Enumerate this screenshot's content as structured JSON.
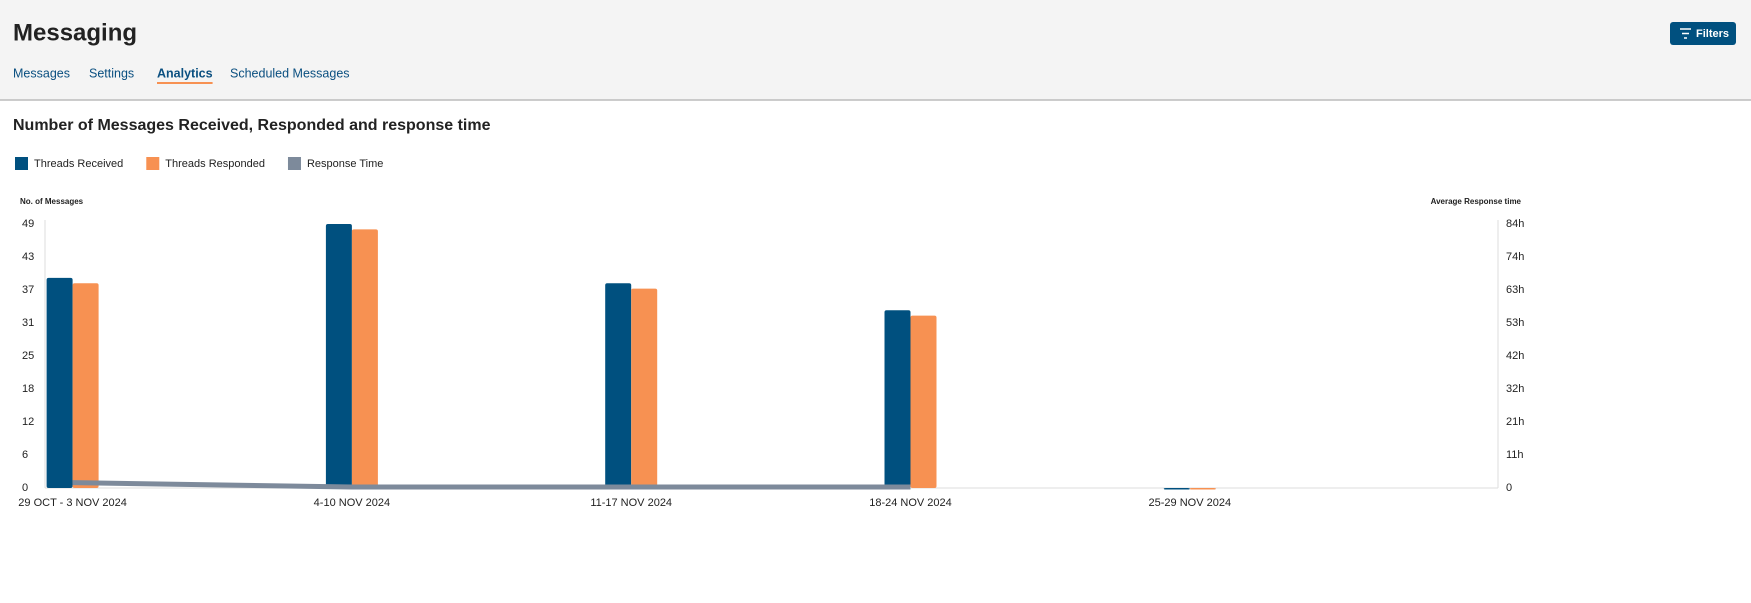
{
  "header": {
    "title": "Messaging",
    "tabs": [
      "Messages",
      "Settings",
      "Analytics",
      "Scheduled Messages"
    ],
    "active_tab": 2,
    "button": "Filters"
  },
  "chart_data": {
    "type": "bar",
    "title": "Number of Messages Received, Responded and response time",
    "y_label": "No. of Messages",
    "y2_label": "Average Response time",
    "categories": [
      "29 OCT - 3 NOV 2024",
      "4-10 NOV 2024",
      "11-17 NOV 2024",
      "18-24 NOV 2024",
      "25-29 NOV 2024"
    ],
    "series": [
      {
        "name": "Threads Received",
        "color": "#00507f",
        "values": [
          39,
          49,
          38,
          33,
          0
        ]
      },
      {
        "name": "Threads Responded",
        "color": "#f79152",
        "values": [
          38,
          48,
          37,
          32,
          0
        ]
      },
      {
        "name": "Response Time",
        "color": "#7d8a9b",
        "type": "line",
        "axis": "y2",
        "values": [
          1.4,
          0,
          0,
          0,
          null
        ]
      }
    ],
    "ylim": [
      0,
      49
    ],
    "yticks": [
      0,
      {
        "value": 6.125,
        "label": "6"
      },
      {
        "value": 12.25,
        "label": "12"
      },
      {
        "value": 18.375,
        "label": "18"
      },
      {
        "value": 24.5,
        "label": "25"
      },
      {
        "value": 30.625,
        "label": "31"
      },
      {
        "value": 36.75,
        "label": "37"
      },
      {
        "value": 42.875,
        "label": "43"
      },
      49
    ],
    "y2lim": [
      0,
      84
    ],
    "y2ticks": [
      0,
      {
        "value": 10.5,
        "label": "11h"
      },
      {
        "value": 21,
        "label": "21h"
      },
      {
        "value": 31.5,
        "label": "32h"
      },
      {
        "value": 42,
        "label": "42h"
      },
      {
        "value": 52.5,
        "label": "53h"
      },
      {
        "value": 63,
        "label": "63h"
      },
      {
        "value": 73.5,
        "label": "74h"
      },
      {
        "value": 84,
        "label": "84h"
      }
    ],
    "grid": false
  }
}
